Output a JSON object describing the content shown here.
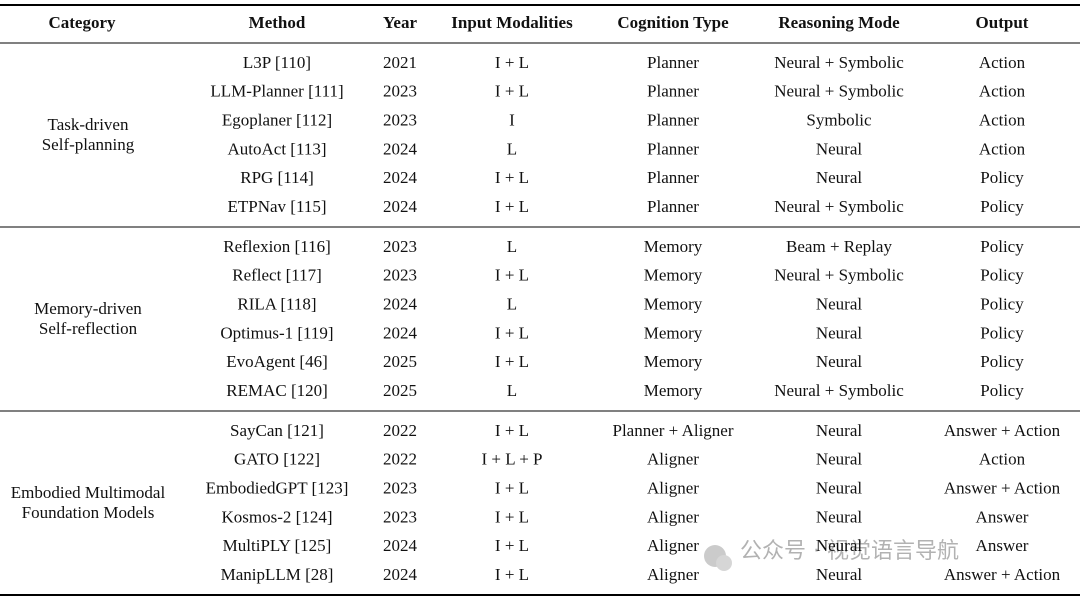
{
  "table": {
    "headers": [
      "Category",
      "Method",
      "Year",
      "Input Modalities",
      "Cognition Type",
      "Reasoning Mode",
      "Output"
    ],
    "groups": [
      {
        "category": [
          "Task-driven",
          "Self-planning"
        ],
        "rows": [
          [
            "L3P [110]",
            "2021",
            "I + L",
            "Planner",
            "Neural + Symbolic",
            "Action"
          ],
          [
            "LLM-Planner [111]",
            "2023",
            "I + L",
            "Planner",
            "Neural + Symbolic",
            "Action"
          ],
          [
            "Egoplaner [112]",
            "2023",
            "I",
            "Planner",
            "Symbolic",
            "Action"
          ],
          [
            "AutoAct [113]",
            "2024",
            "L",
            "Planner",
            "Neural",
            "Action"
          ],
          [
            "RPG [114]",
            "2024",
            "I + L",
            "Planner",
            "Neural",
            "Policy"
          ],
          [
            "ETPNav [115]",
            "2024",
            "I + L",
            "Planner",
            "Neural + Symbolic",
            "Policy"
          ]
        ]
      },
      {
        "category": [
          "Memory-driven",
          "Self-reflection"
        ],
        "rows": [
          [
            "Reflexion [116]",
            "2023",
            "L",
            "Memory",
            "Beam + Replay",
            "Policy"
          ],
          [
            "Reflect [117]",
            "2023",
            "I + L",
            "Memory",
            "Neural + Symbolic",
            "Policy"
          ],
          [
            "RILA [118]",
            "2024",
            "L",
            "Memory",
            "Neural",
            "Policy"
          ],
          [
            "Optimus-1 [119]",
            "2024",
            "I + L",
            "Memory",
            "Neural",
            "Policy"
          ],
          [
            "EvoAgent [46]",
            "2025",
            "I + L",
            "Memory",
            "Neural",
            "Policy"
          ],
          [
            "REMAC [120]",
            "2025",
            "L",
            "Memory",
            "Neural + Symbolic",
            "Policy"
          ]
        ]
      },
      {
        "category": [
          "Embodied Multimodal",
          "Foundation Models"
        ],
        "rows": [
          [
            "SayCan [121]",
            "2022",
            "I + L",
            "Planner + Aligner",
            "Neural",
            "Answer + Action"
          ],
          [
            "GATO [122]",
            "2022",
            "I + L + P",
            "Aligner",
            "Neural",
            "Action"
          ],
          [
            "EmbodiedGPT [123]",
            "2023",
            "I + L",
            "Aligner",
            "Neural",
            "Answer + Action"
          ],
          [
            "Kosmos-2 [124]",
            "2023",
            "I + L",
            "Aligner",
            "Neural",
            "Answer"
          ],
          [
            "MultiPLY [125]",
            "2024",
            "I + L",
            "Aligner",
            "Neural",
            "Answer"
          ],
          [
            "ManipLLM [28]",
            "2024",
            "I + L",
            "Aligner",
            "Neural",
            "Answer + Action"
          ]
        ]
      }
    ]
  },
  "watermark": "公众号 · 视觉语言导航"
}
